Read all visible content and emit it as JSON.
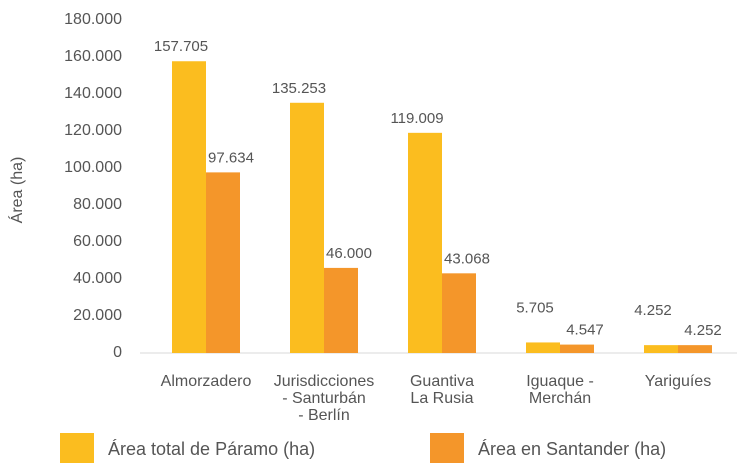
{
  "chart_data": {
    "type": "bar",
    "y_label": "Área (ha)",
    "categories": [
      "Almorzadero",
      "Jurisdicciones\n- Santurbán\n- Berlín",
      "Guantiva\nLa Rusia",
      "Iguaque -\nMerchán",
      "Yariguíes"
    ],
    "series": [
      {
        "name": "Área total de Páramo (ha)",
        "color": "#fbbd1f",
        "values": [
          157705,
          135253,
          119009,
          5705,
          4252
        ],
        "value_labels": [
          "157.705",
          "135.253",
          "119.009",
          "5.705",
          "4.252"
        ]
      },
      {
        "name": "Área en Santander (ha)",
        "color": "#f4962a",
        "values": [
          97634,
          46000,
          43068,
          4547,
          4252
        ],
        "value_labels": [
          "97.634",
          "46.000",
          "43.068",
          "4.547",
          "4.252"
        ]
      }
    ],
    "ylim": [
      0,
      180000
    ],
    "yticks": [
      0,
      {
        "value": 20000,
        "label": "20.000"
      },
      {
        "value": 40000,
        "label": "40.000"
      },
      {
        "value": 60000,
        "label": "60.000"
      },
      {
        "value": 80000,
        "label": "80.000"
      },
      {
        "value": 100000,
        "label": "100.000"
      },
      {
        "value": 120000,
        "label": "120.000"
      },
      {
        "value": 140000,
        "label": "140.000"
      },
      {
        "value": 160000,
        "label": "160.000"
      },
      {
        "value": 180000,
        "label": "180.000"
      }
    ],
    "grid": false,
    "legend": "bottom"
  }
}
